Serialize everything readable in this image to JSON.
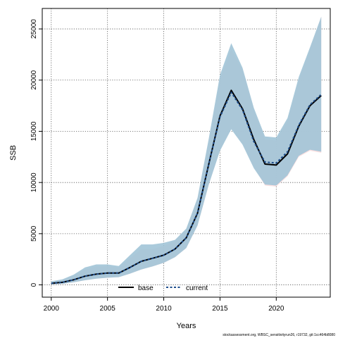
{
  "chart_data": {
    "type": "line",
    "title": "",
    "xlabel": "Years",
    "ylabel": "SSB",
    "xlim": [
      1999.2,
      2024.8
    ],
    "ylim": [
      -1200,
      27000
    ],
    "x_ticks": [
      2000,
      2005,
      2010,
      2015,
      2020
    ],
    "y_ticks": [
      0,
      5000,
      10000,
      15000,
      20000,
      25000
    ],
    "grid": true,
    "legend_position": "bottom-center",
    "x": [
      2000,
      2001,
      2002,
      2003,
      2004,
      2005,
      2006,
      2007,
      2008,
      2009,
      2010,
      2011,
      2012,
      2013,
      2014,
      2015,
      2016,
      2017,
      2018,
      2019,
      2020,
      2021,
      2022,
      2023,
      2024
    ],
    "series": [
      {
        "name": "base",
        "color": "#000000",
        "values": [
          150,
          250,
          500,
          850,
          1050,
          1150,
          1150,
          1700,
          2300,
          2600,
          2900,
          3500,
          4600,
          7000,
          11800,
          16500,
          19000,
          17200,
          14200,
          11800,
          11700,
          12800,
          15500,
          17500,
          18500
        ],
        "ci_lower": [
          50,
          100,
          250,
          450,
          600,
          700,
          750,
          1100,
          1500,
          1800,
          2150,
          2700,
          3600,
          5800,
          9800,
          13200,
          15300,
          13800,
          11500,
          9700,
          9600,
          10600,
          12500,
          13100,
          12900
        ],
        "ci_upper": [
          300,
          500,
          900,
          1500,
          1800,
          1850,
          1700,
          2600,
          3500,
          3500,
          3800,
          4300,
          5400,
          8400,
          14000,
          20100,
          23000,
          21000,
          17100,
          14200,
          14100,
          16000,
          20000,
          23000,
          26200
        ],
        "band_color": "#fcdede"
      },
      {
        "name": "current",
        "color": "#1f4e8c",
        "values": [
          150,
          250,
          500,
          850,
          1050,
          1150,
          1150,
          1700,
          2300,
          2600,
          2900,
          3500,
          4600,
          7000,
          11800,
          16400,
          18800,
          17100,
          14000,
          12000,
          11900,
          13000,
          15600,
          17600,
          18600
        ],
        "ci_lower": [
          50,
          100,
          250,
          450,
          600,
          700,
          750,
          1100,
          1500,
          1800,
          2150,
          2700,
          3600,
          5800,
          9800,
          13100,
          15200,
          13700,
          11400,
          9800,
          9700,
          10700,
          12600,
          13200,
          13000
        ],
        "ci_upper": [
          350,
          550,
          1000,
          1700,
          2000,
          2000,
          1850,
          2900,
          3950,
          3950,
          4100,
          4400,
          5500,
          8500,
          14300,
          20500,
          23600,
          21200,
          17300,
          14500,
          14400,
          16300,
          20300,
          23200,
          26200
        ],
        "band_color": "#9ec3d6"
      }
    ],
    "legend": [
      "base",
      "current"
    ],
    "footer_caption": "stockassessment.org, WBSC_sensitivityrun26, r19732, git:1cc464b8080"
  },
  "colors": {
    "background": "#ffffff",
    "grid": "#555555",
    "frame": "#000000"
  }
}
